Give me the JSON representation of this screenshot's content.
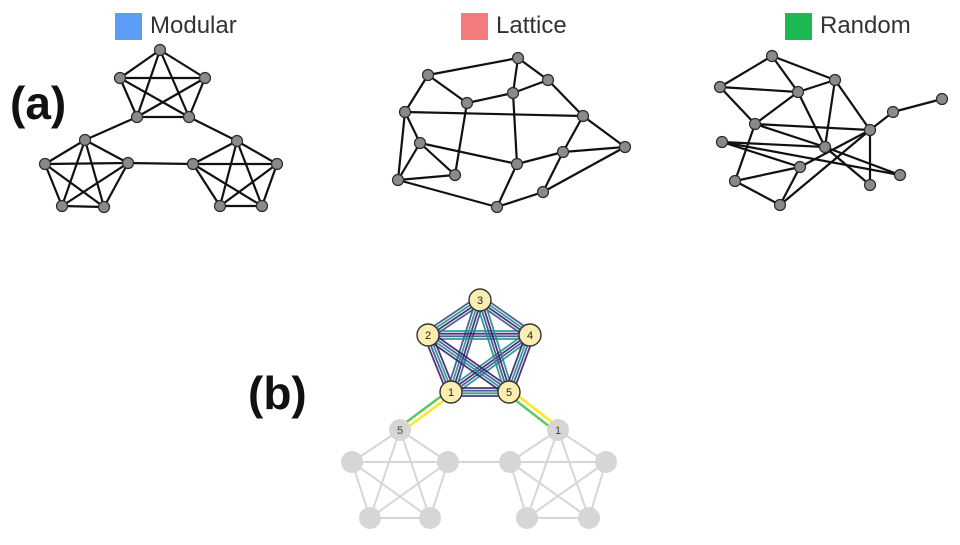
{
  "panels": {
    "a": "(a)",
    "b": "(b)"
  },
  "legend": [
    {
      "label": "Modular",
      "color": "#5b9cf5"
    },
    {
      "label": "Lattice",
      "color": "#f47c7c"
    },
    {
      "label": "Random",
      "color": "#1db954"
    }
  ],
  "colors": {
    "node_fill": "#8a8a8a",
    "node_stroke": "#2a2a2a",
    "edge": "#111111",
    "highlight_node_fill": "#fbeeb0",
    "highlight_node_stroke": "#333333",
    "faded": "#d6d6d6",
    "walk_colors": [
      "#3a1f6e",
      "#3b528b",
      "#21908d",
      "#5ec962",
      "#fde725"
    ]
  },
  "highlight_nodes": [
    "1",
    "2",
    "3",
    "4",
    "5"
  ],
  "bridge_nodes": [
    "5",
    "1"
  ]
}
